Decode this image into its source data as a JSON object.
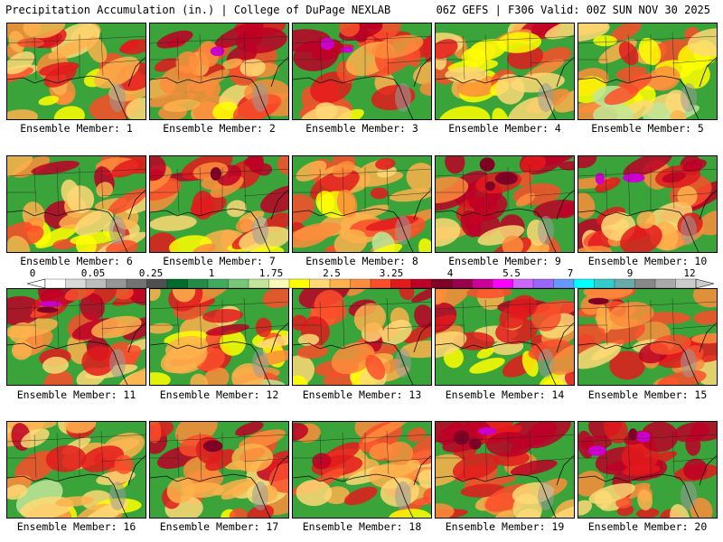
{
  "header": {
    "left": "Precipitation Accumulation (in.) | College of DuPage NEXLAB",
    "right": "06Z GEFS | F306 Valid: 00Z SUN NOV 30 2025"
  },
  "members": [
    {
      "label": "Ensemble Member: 1",
      "intensity": 0.45
    },
    {
      "label": "Ensemble Member: 2",
      "intensity": 0.7
    },
    {
      "label": "Ensemble Member: 3",
      "intensity": 0.75
    },
    {
      "label": "Ensemble Member: 4",
      "intensity": 0.35
    },
    {
      "label": "Ensemble Member: 5",
      "intensity": 0.3
    },
    {
      "label": "Ensemble Member: 6",
      "intensity": 0.6
    },
    {
      "label": "Ensemble Member: 7",
      "intensity": 0.7
    },
    {
      "label": "Ensemble Member: 8",
      "intensity": 0.45
    },
    {
      "label": "Ensemble Member: 9",
      "intensity": 0.85
    },
    {
      "label": "Ensemble Member: 10",
      "intensity": 0.75
    },
    {
      "label": "Ensemble Member: 11",
      "intensity": 0.75
    },
    {
      "label": "Ensemble Member: 12",
      "intensity": 0.5
    },
    {
      "label": "Ensemble Member: 13",
      "intensity": 0.5
    },
    {
      "label": "Ensemble Member: 14",
      "intensity": 0.55
    },
    {
      "label": "Ensemble Member: 15",
      "intensity": 0.65
    },
    {
      "label": "Ensemble Member: 16",
      "intensity": 0.4
    },
    {
      "label": "Ensemble Member: 17",
      "intensity": 0.65
    },
    {
      "label": "Ensemble Member: 18",
      "intensity": 0.6
    },
    {
      "label": "Ensemble Member: 19",
      "intensity": 0.8
    },
    {
      "label": "Ensemble Member: 20",
      "intensity": 0.85
    }
  ],
  "colorbar": {
    "tick_labels": [
      "0",
      "0.05",
      "0.25",
      "1",
      "1.75",
      "2.5",
      "3.25",
      "4",
      "5.5",
      "7",
      "9",
      "12"
    ],
    "colors": [
      "#ffffff",
      "#d9d9d9",
      "#bdbdbd",
      "#969696",
      "#737373",
      "#4f4f4f",
      "#006d2c",
      "#238b45",
      "#41ab5d",
      "#78c679",
      "#c2e699",
      "#f7fcb9",
      "#ffff00",
      "#fed976",
      "#feb24c",
      "#fd8d3c",
      "#fc4e2a",
      "#e31a1c",
      "#bd0026",
      "#800026",
      "#99004c",
      "#cc0099",
      "#ff00ff",
      "#cc66ff",
      "#9966ff",
      "#6699ff",
      "#00ffff",
      "#33cccc",
      "#66aaaa",
      "#888888",
      "#aaaaaa",
      "#cccccc"
    ]
  }
}
